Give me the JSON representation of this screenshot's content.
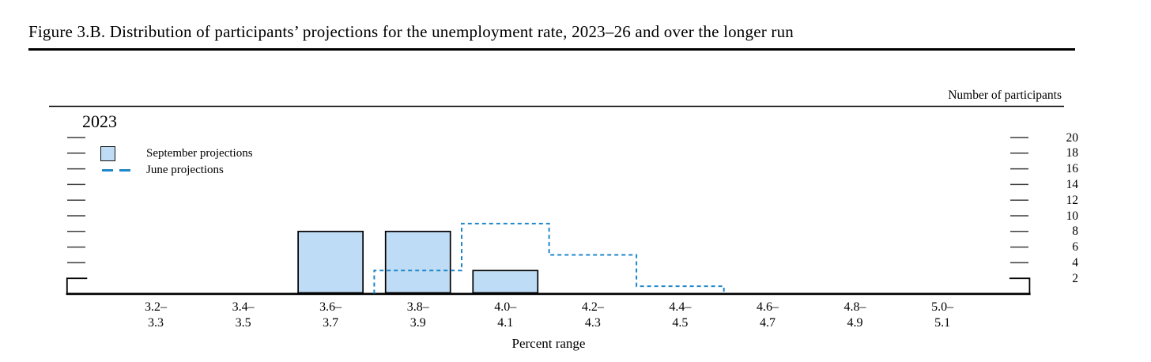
{
  "title": "Figure 3.B. Distribution of participants’ projections for the unemployment rate, 2023–26 and over the longer run",
  "panel": {
    "year_label": "2023",
    "right_axis_title": "Number of participants",
    "x_axis_title": "Percent range"
  },
  "legend": {
    "september": "September projections",
    "june": "June projections"
  },
  "colors": {
    "bar_fill": "#bedcf5",
    "bar_border": "#000000",
    "june_line": "#1f87c9",
    "axis": "#000000",
    "tick": "#3d3d3d"
  },
  "chart_data": {
    "type": "bar",
    "title": "2023",
    "categories": [
      "3.2–3.3",
      "3.4–3.5",
      "3.6–3.7",
      "3.8–3.9",
      "4.0–4.1",
      "4.2–4.3",
      "4.4–4.5",
      "4.6–4.7",
      "4.8–4.9",
      "5.0–5.1"
    ],
    "category_lines": [
      [
        "3.2–",
        "3.3"
      ],
      [
        "3.4–",
        "3.5"
      ],
      [
        "3.6–",
        "3.7"
      ],
      [
        "3.8–",
        "3.9"
      ],
      [
        "4.0–",
        "4.1"
      ],
      [
        "4.2–",
        "4.3"
      ],
      [
        "4.4–",
        "4.5"
      ],
      [
        "4.6–",
        "4.7"
      ],
      [
        "4.8–",
        "4.9"
      ],
      [
        "5.0–",
        "5.1"
      ]
    ],
    "series": [
      {
        "name": "September projections",
        "type": "bar",
        "values": [
          0,
          0,
          8,
          8,
          3,
          0,
          0,
          0,
          0,
          0
        ]
      },
      {
        "name": "June projections",
        "type": "dashed-step",
        "values": [
          0,
          0,
          0,
          3,
          9,
          5,
          1,
          0,
          0,
          0
        ]
      }
    ],
    "xlabel": "Percent range",
    "ylabel": "Number of participants",
    "ylim": [
      0,
      20
    ],
    "y_ticks": [
      2,
      4,
      6,
      8,
      10,
      12,
      14,
      16,
      18,
      20
    ],
    "grid": false,
    "legend_position": "top-left"
  }
}
